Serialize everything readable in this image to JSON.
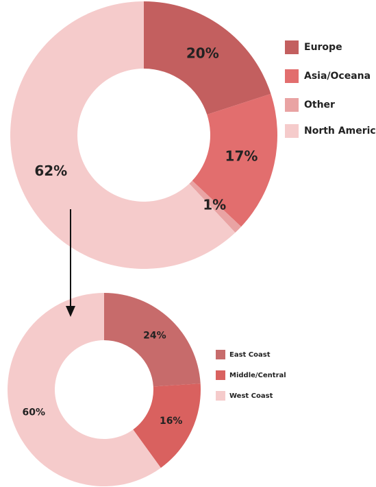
{
  "chart_data": [
    {
      "type": "donut",
      "categories": [
        "Europe",
        "Asia/Oceana",
        "Other",
        "North America"
      ],
      "values": [
        20,
        17,
        1,
        62
      ],
      "value_labels": [
        "20%",
        "17%",
        "1%",
        "62%"
      ],
      "colors": [
        "#c35f5f",
        "#e26e6e",
        "#e9a3a3",
        "#f5cbcb"
      ]
    },
    {
      "type": "donut",
      "categories": [
        "East Coast",
        "Middle/Central",
        "West Coast"
      ],
      "values": [
        24,
        16,
        60
      ],
      "value_labels": [
        "24%",
        "16%",
        "60%"
      ],
      "colors": [
        "#c76b6b",
        "#d9615f",
        "#f5cbcb"
      ]
    }
  ]
}
